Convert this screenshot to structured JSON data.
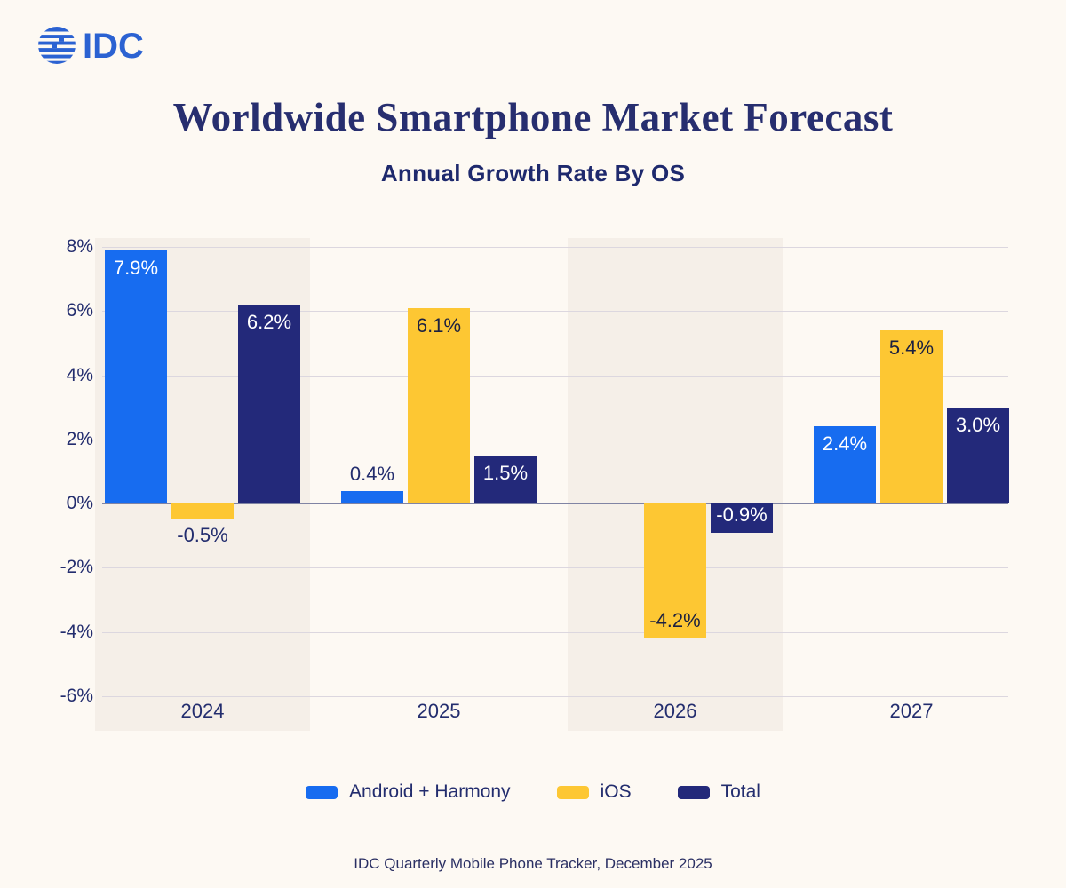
{
  "logo": {
    "text": "IDC",
    "color": "#2b62d2"
  },
  "header": {
    "title": "Worldwide Smartphone Market Forecast",
    "subtitle": "Annual Growth Rate By OS"
  },
  "chart_data": {
    "type": "bar",
    "title": "Worldwide Smartphone Market Forecast",
    "subtitle": "Annual Growth Rate By OS",
    "categories": [
      "2024",
      "2025",
      "2026",
      "2027"
    ],
    "series": [
      {
        "name": "Android + Harmony",
        "color": "#176cf0",
        "label_color_inside": "#ffffff",
        "values": [
          7.9,
          0.4,
          0.0,
          2.4
        ],
        "labels": [
          "7.9%",
          "0.4%",
          "",
          "2.4%"
        ]
      },
      {
        "name": "iOS",
        "color": "#fdc733",
        "label_color_inside": "#1c2140",
        "values": [
          -0.5,
          6.1,
          -4.2,
          5.4
        ],
        "labels": [
          "-0.5%",
          "6.1%",
          "-4.2%",
          "5.4%"
        ]
      },
      {
        "name": "Total",
        "color": "#23297a",
        "label_color_inside": "#ffffff",
        "values": [
          6.2,
          1.5,
          -0.9,
          3.0
        ],
        "labels": [
          "6.2%",
          "1.5%",
          "-0.9%",
          "3.0%"
        ]
      }
    ],
    "ylabel": "",
    "xlabel": "",
    "y_ticks": [
      "8%",
      "6%",
      "4%",
      "2%",
      "0%",
      "-2%",
      "-4%",
      "-6%"
    ],
    "y_tick_values": [
      8,
      6,
      4,
      2,
      0,
      -2,
      -4,
      -6
    ],
    "ylim": [
      -6.8,
      8.3
    ],
    "grid": true,
    "legend_position": "bottom",
    "striped_columns": [
      0,
      2
    ],
    "outside_label_color": "#232d6e"
  },
  "footer": {
    "source": "IDC Quarterly Mobile Phone Tracker, December 2025"
  }
}
